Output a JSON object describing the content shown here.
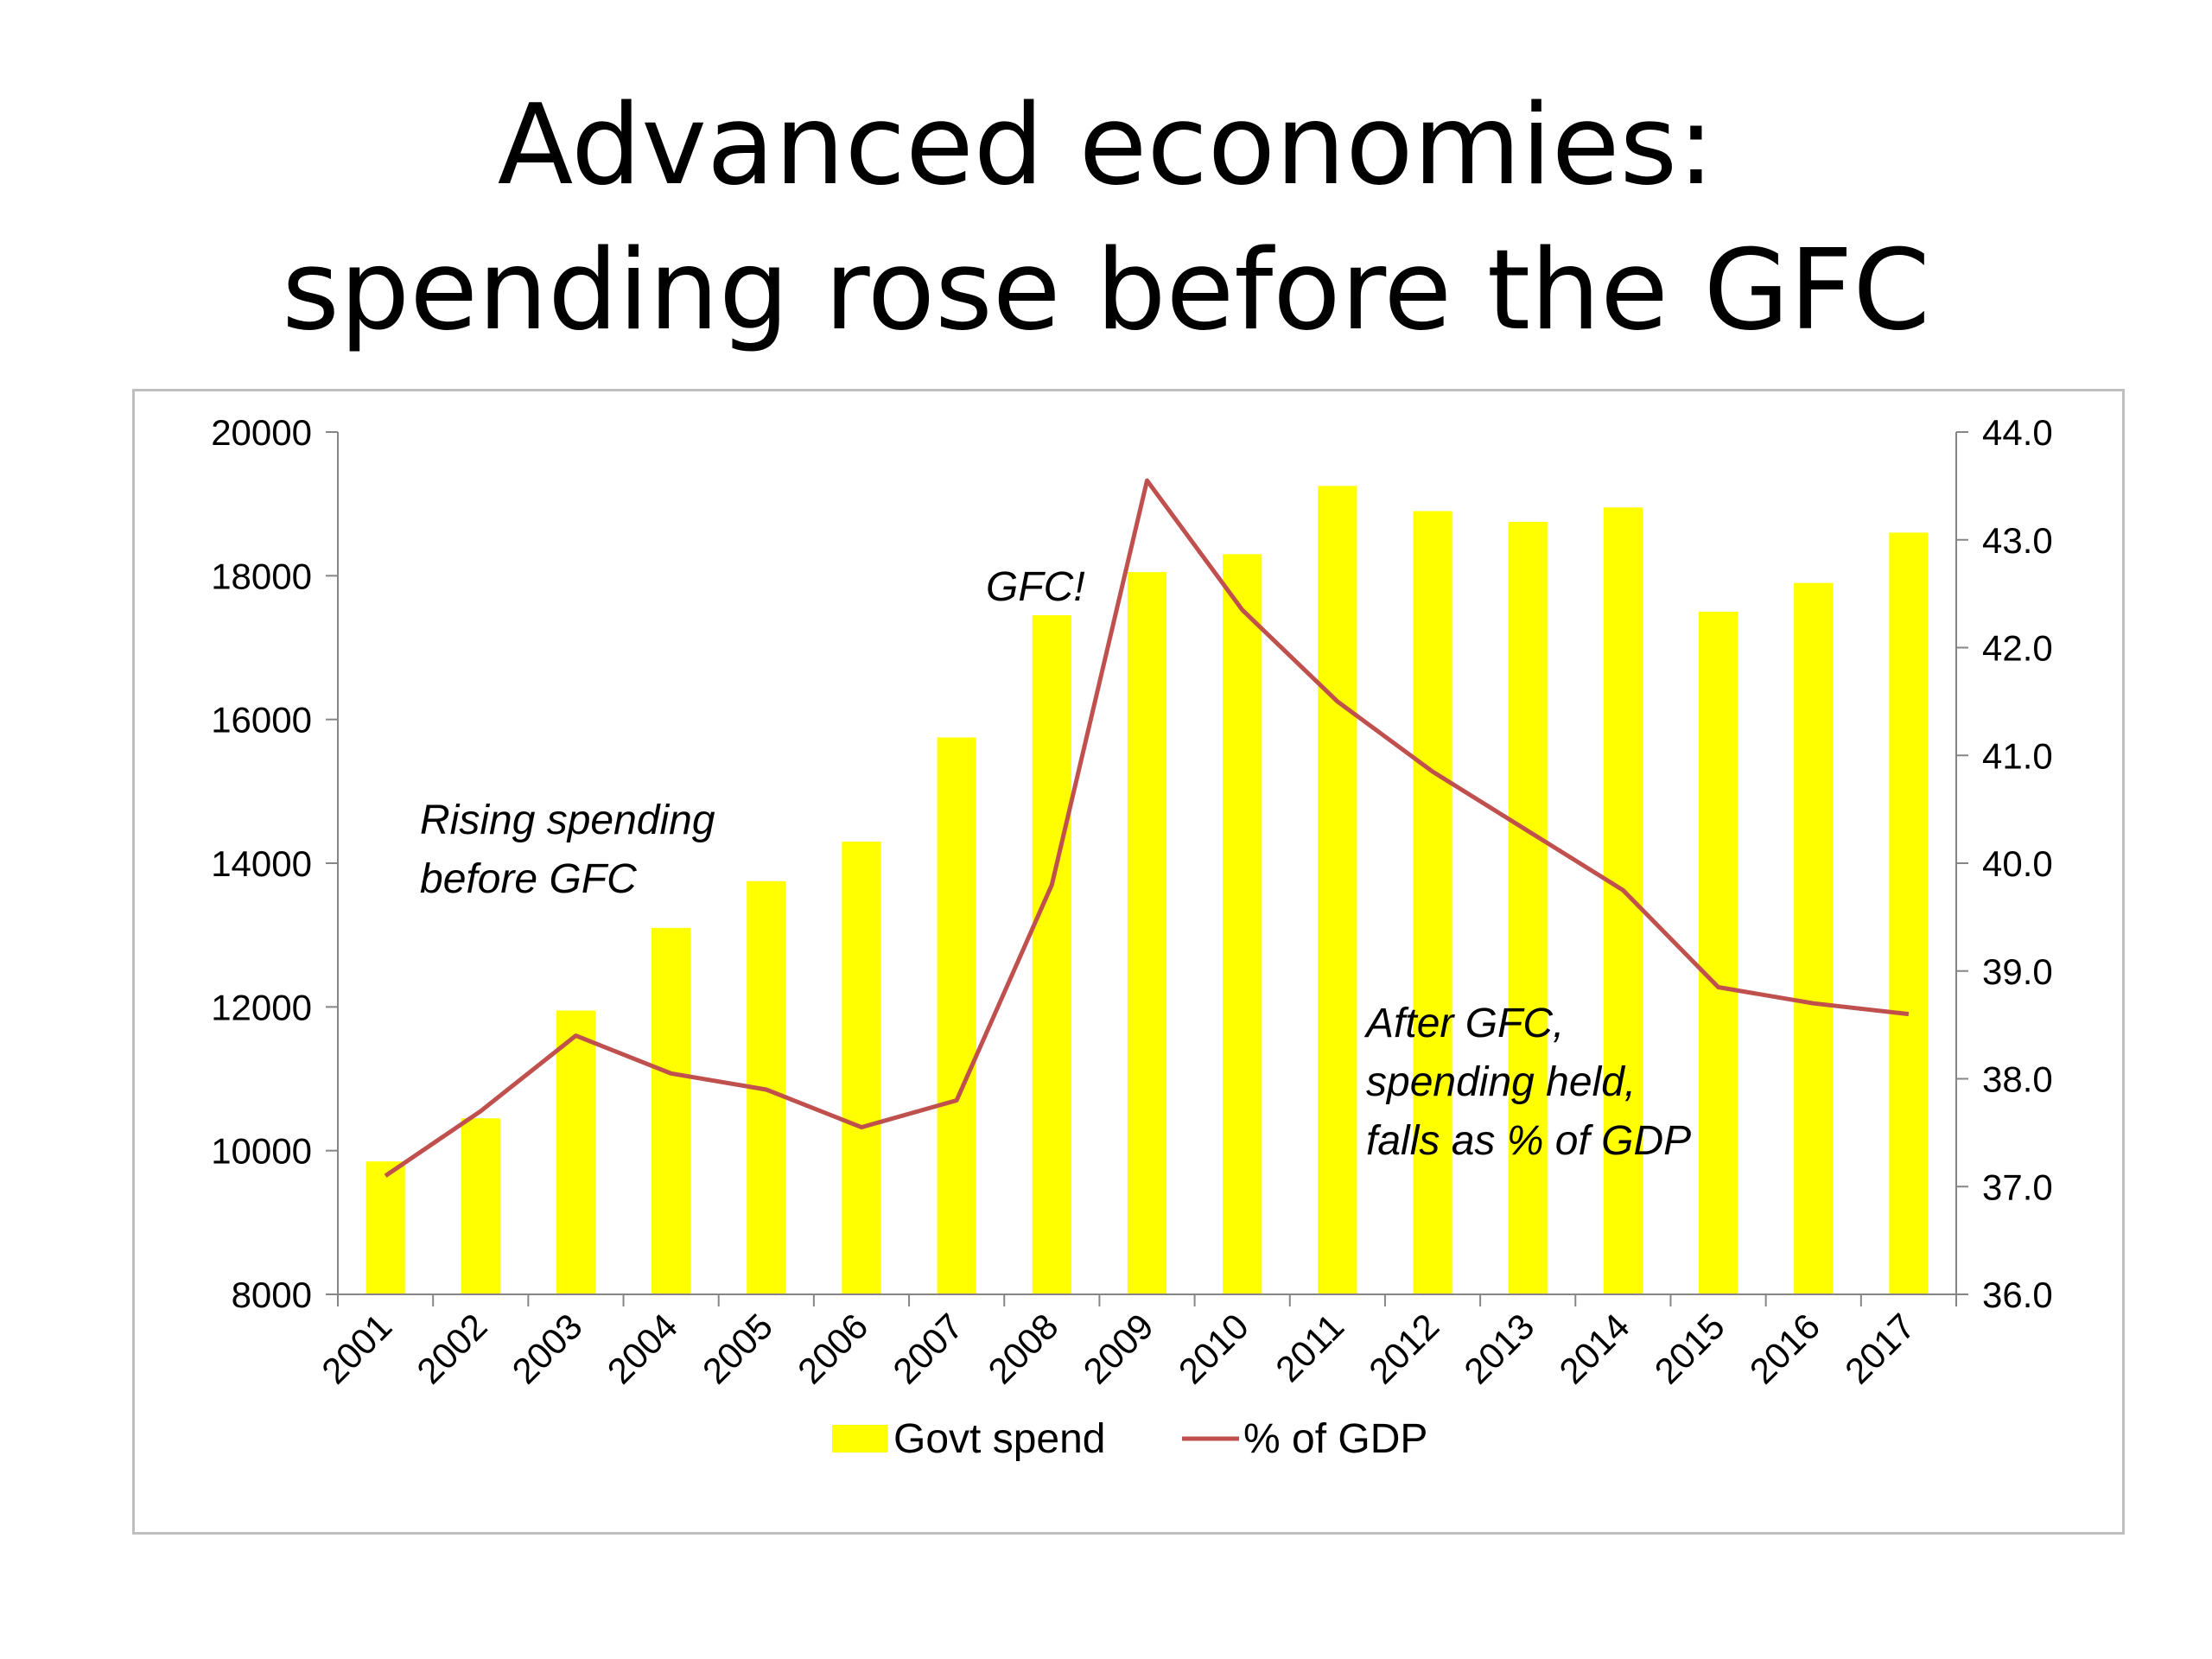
{
  "slide": {
    "title_line1": "Advanced economies:",
    "title_line2": "spending rose before the GFC"
  },
  "chart_data": {
    "type": "bar",
    "categories": [
      "2001",
      "2002",
      "2003",
      "2004",
      "2005",
      "2006",
      "2007",
      "2008",
      "2009",
      "2010",
      "2011",
      "2012",
      "2013",
      "2014",
      "2015",
      "2016",
      "2017"
    ],
    "series": [
      {
        "name": "Govt spend",
        "type": "bar",
        "axis": "left",
        "color": "#ffff00",
        "values": [
          9850,
          10450,
          11950,
          13100,
          13750,
          14300,
          15750,
          17450,
          18050,
          18300,
          19250,
          18900,
          18750,
          18950,
          17500,
          17900,
          18600
        ]
      },
      {
        "name": "% of GDP",
        "type": "line",
        "axis": "right",
        "color": "#c0504d",
        "values": [
          37.1,
          37.7,
          38.4,
          38.05,
          37.9,
          37.55,
          37.8,
          39.8,
          43.55,
          42.35,
          41.5,
          40.85,
          40.3,
          39.75,
          38.85,
          38.7,
          38.6
        ]
      }
    ],
    "y_left": {
      "min": 8000,
      "max": 20000,
      "ticks": [
        "20000",
        "18000",
        "16000",
        "14000",
        "12000",
        "10000",
        "8000"
      ],
      "tick_values": [
        20000,
        18000,
        16000,
        14000,
        12000,
        10000,
        8000
      ]
    },
    "y_right": {
      "min": 36.0,
      "max": 44.0,
      "ticks": [
        "44.0",
        "43.0",
        "42.0",
        "41.0",
        "40.0",
        "39.0",
        "38.0",
        "37.0",
        "36.0"
      ],
      "tick_values": [
        44,
        43,
        42,
        41,
        40,
        39,
        38,
        37,
        36
      ]
    },
    "grid": false,
    "legend": {
      "position": "bottom"
    },
    "annotations": [
      {
        "lines": [
          "Rising spending",
          "before GFC"
        ]
      },
      {
        "lines": [
          "GFC!"
        ]
      },
      {
        "lines": [
          "After GFC,",
          "spending held,",
          "falls as % of GDP"
        ]
      }
    ]
  }
}
